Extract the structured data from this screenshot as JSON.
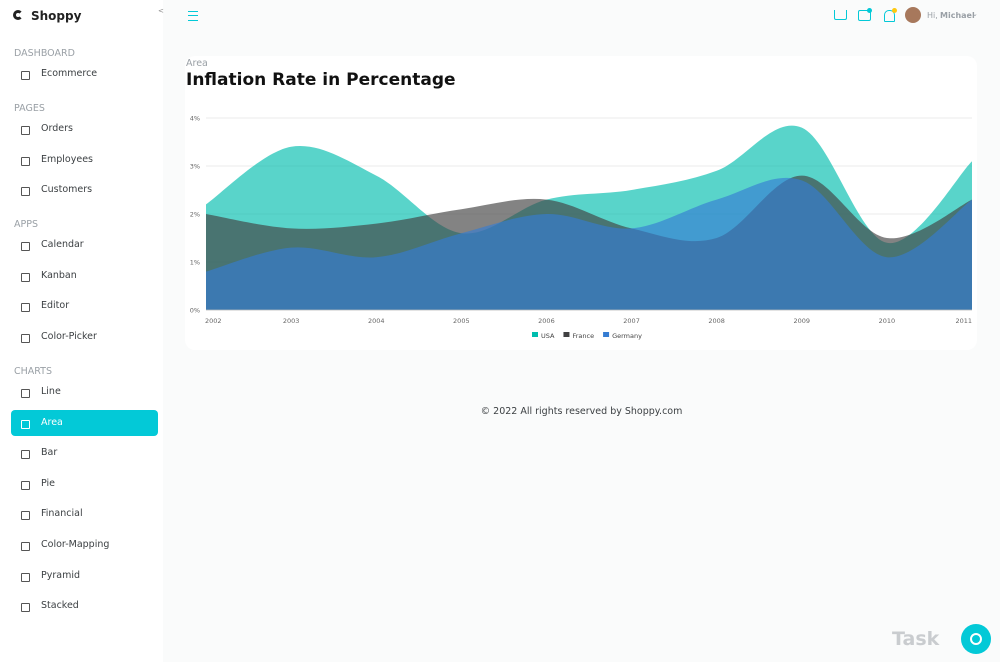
{
  "brand": "Shoppy",
  "sidebar": [
    {
      "title": "DASHBOARD",
      "items": [
        "Ecommerce"
      ]
    },
    {
      "title": "PAGES",
      "items": [
        "Orders",
        "Employees",
        "Customers"
      ]
    },
    {
      "title": "APPS",
      "items": [
        "Calendar",
        "Kanban",
        "Editor",
        "Color-Picker"
      ]
    },
    {
      "title": "CHARTS",
      "items": [
        "Line",
        "Area",
        "Bar",
        "Pie",
        "Financial",
        "Color-Mapping",
        "Pyramid",
        "Stacked"
      ]
    }
  ],
  "active_item": "Area",
  "navbar": {
    "greeting": "Hi,",
    "user": "Michael"
  },
  "page": {
    "category": "Area"
  },
  "chart_data": {
    "type": "area",
    "title": "Inflation Rate in Percentage",
    "x": [
      2002,
      2003,
      2004,
      2005,
      2006,
      2007,
      2008,
      2009,
      2010,
      2011
    ],
    "xlim": [
      2002,
      2011
    ],
    "series": [
      {
        "name": "USA",
        "color": "#00bdae",
        "values": [
          2.2,
          3.4,
          2.8,
          1.6,
          2.3,
          2.5,
          2.9,
          3.8,
          1.4,
          3.1
        ]
      },
      {
        "name": "France",
        "color": "#404041",
        "values": [
          2,
          1.7,
          1.8,
          2.1,
          2.3,
          1.7,
          1.5,
          2.8,
          1.5,
          2.3
        ]
      },
      {
        "name": "Germany",
        "color": "#357cd2",
        "values": [
          0.8,
          1.3,
          1.1,
          1.6,
          2,
          1.7,
          2.3,
          2.7,
          1.1,
          2.3
        ]
      }
    ],
    "ylim": [
      0,
      4
    ],
    "yticks": [
      {
        "value": 0,
        "label": "0%"
      },
      {
        "value": 1,
        "label": "1%"
      },
      {
        "value": 2,
        "label": "2%"
      },
      {
        "value": 3,
        "label": "3%"
      },
      {
        "value": 4,
        "label": "4%"
      }
    ],
    "grid": true,
    "legend": "bottom"
  },
  "footer": "© 2022 All rights reserved by Shoppy.com",
  "watermark": "Task"
}
